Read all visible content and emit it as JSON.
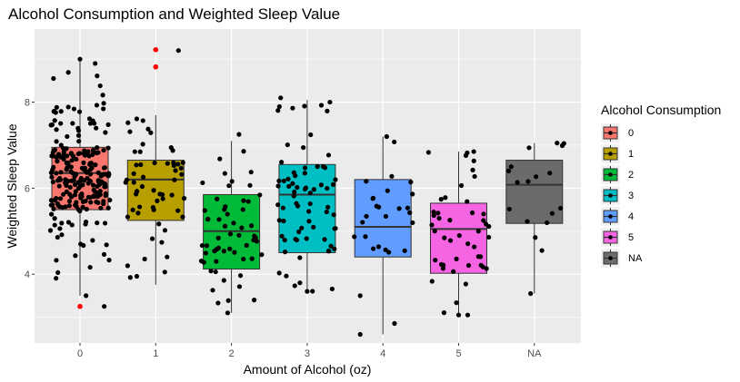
{
  "chart_data": {
    "type": "boxplot",
    "title": "Alcohol Consumption and Weighted Sleep Value",
    "xlabel": "Amount of Alcohol (oz)",
    "ylabel": "Weighted Sleep Value",
    "ylim": [
      2.4,
      9.7
    ],
    "y_ticks": [
      4,
      6,
      8
    ],
    "grid": true,
    "legend": {
      "title": "Alcohol Consumption",
      "placement": "right"
    },
    "categories": [
      "0",
      "1",
      "2",
      "3",
      "4",
      "5",
      "NA"
    ],
    "colors": [
      "#F8766D",
      "#B79F00",
      "#00BA38",
      "#00BFC4",
      "#619CFF",
      "#F564E3",
      "#6B6B6B"
    ],
    "boxes": [
      {
        "category": "0",
        "whisker_low": 3.5,
        "q1": 5.5,
        "median": 6.35,
        "q3": 6.95,
        "whisker_high": 9.0
      },
      {
        "category": "1",
        "whisker_low": 3.75,
        "q1": 5.25,
        "median": 6.2,
        "q3": 6.65,
        "whisker_high": 7.7
      },
      {
        "category": "2",
        "whisker_low": 3.1,
        "q1": 4.12,
        "median": 5.0,
        "q3": 5.85,
        "whisker_high": 7.1
      },
      {
        "category": "3",
        "whisker_low": 3.6,
        "q1": 4.5,
        "median": 5.85,
        "q3": 6.55,
        "whisker_high": 8.05
      },
      {
        "category": "4",
        "whisker_low": 2.6,
        "q1": 4.4,
        "median": 5.1,
        "q3": 6.2,
        "whisker_high": 7.2
      },
      {
        "category": "5",
        "whisker_low": 3.05,
        "q1": 4.02,
        "median": 5.05,
        "q3": 5.65,
        "whisker_high": 6.85
      },
      {
        "category": "NA",
        "whisker_low": 3.55,
        "q1": 5.18,
        "median": 6.08,
        "q3": 6.65,
        "whisker_high": 7.05
      }
    ],
    "outliers": [
      {
        "category": "0",
        "y": 3.25
      },
      {
        "category": "1",
        "y": 9.22
      },
      {
        "category": "1",
        "y": 8.82
      }
    ],
    "points": [
      {
        "category": "0",
        "dx": 0.0,
        "y": 9.0
      },
      {
        "category": "0",
        "dx": 0.2,
        "y": 8.9
      },
      {
        "category": "0",
        "dx": -0.35,
        "y": 8.55
      },
      {
        "category": "0",
        "dx": 0.32,
        "y": 3.25
      },
      {
        "category": "0",
        "dx": 0.08,
        "y": 3.5
      },
      {
        "category": "1",
        "dx": 0.3,
        "y": 9.2
      },
      {
        "category": "1",
        "dx": -0.25,
        "y": 3.95
      },
      {
        "category": "1",
        "dx": 0.15,
        "y": 4.4
      },
      {
        "category": "2",
        "dx": 0.1,
        "y": 7.25
      },
      {
        "category": "2",
        "dx": -0.05,
        "y": 3.1
      },
      {
        "category": "2",
        "dx": 0.3,
        "y": 3.4
      },
      {
        "category": "3",
        "dx": -0.35,
        "y": 8.1
      },
      {
        "category": "3",
        "dx": 0.3,
        "y": 8.0
      },
      {
        "category": "3",
        "dx": 0.0,
        "y": 3.6
      },
      {
        "category": "4",
        "dx": -0.3,
        "y": 2.6
      },
      {
        "category": "4",
        "dx": -0.3,
        "y": 3.5
      },
      {
        "category": "4",
        "dx": 0.05,
        "y": 7.2
      },
      {
        "category": "5",
        "dx": 0.0,
        "y": 3.05
      },
      {
        "category": "5",
        "dx": 0.12,
        "y": 3.05
      },
      {
        "category": "5",
        "dx": 0.2,
        "y": 6.85
      },
      {
        "category": "NA",
        "dx": 0.3,
        "y": 7.05
      },
      {
        "category": "NA",
        "dx": -0.05,
        "y": 3.55
      },
      {
        "category": "NA",
        "dx": 0.1,
        "y": 4.55
      }
    ],
    "jitter_counts": [
      230,
      55,
      55,
      70,
      25,
      45,
      15
    ]
  }
}
